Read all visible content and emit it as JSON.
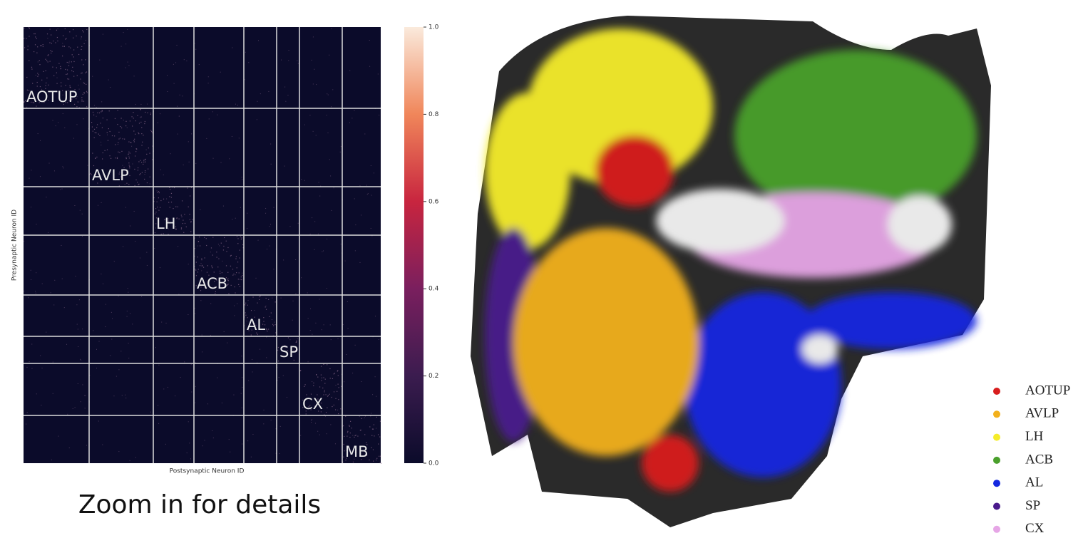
{
  "heatmap": {
    "blocks": [
      "AOTUP",
      "AVLP",
      "LH",
      "ACB",
      "AL",
      "SP",
      "CX",
      "MB"
    ],
    "x_label": "Postsynaptic Neuron ID",
    "y_label": "Presynaptic Neuron ID",
    "colorbar": {
      "range": [
        0,
        1
      ],
      "ticks": [
        {
          "value": 0,
          "label": "0.0"
        },
        {
          "value": 0.2,
          "label": "0.2"
        },
        {
          "value": 0.4,
          "label": "0.4"
        },
        {
          "value": 0.6,
          "label": "0.6"
        },
        {
          "value": 0.8,
          "label": "0.8"
        },
        {
          "value": 1,
          "label": "1.0"
        }
      ]
    }
  },
  "caption": "Zoom in for details",
  "legend": [
    {
      "name": "AOTUP",
      "color": "#d81e1e"
    },
    {
      "name": "AVLP",
      "color": "#f2b01c"
    },
    {
      "name": "LH",
      "color": "#f5ec2a"
    },
    {
      "name": "ACB",
      "color": "#4aa02c"
    },
    {
      "name": "AL",
      "color": "#1428e0"
    },
    {
      "name": "SP",
      "color": "#4a1a8c"
    },
    {
      "name": "CX",
      "color": "#e6a6e6"
    }
  ]
}
